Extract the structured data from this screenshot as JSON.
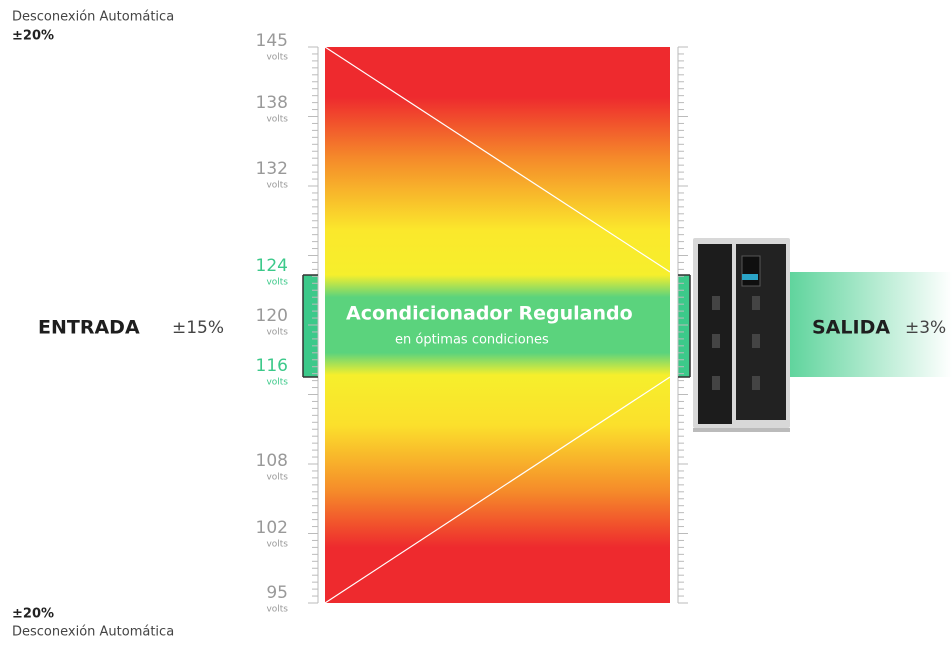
{
  "top_note": {
    "text": "Desconexión Automática",
    "range": "±20%"
  },
  "bottom_note": {
    "range": "±20%",
    "text": "Desconexión Automática"
  },
  "scale": [
    {
      "value": 145,
      "unit": "volts"
    },
    {
      "value": 138,
      "unit": "volts"
    },
    {
      "value": 132,
      "unit": "volts"
    },
    {
      "value": 124,
      "unit": "volts"
    },
    {
      "value": 120,
      "unit": "volts"
    },
    {
      "value": 116,
      "unit": "volts"
    },
    {
      "value": 108,
      "unit": "volts"
    },
    {
      "value": 102,
      "unit": "volts"
    },
    {
      "value": 95,
      "unit": "volts"
    }
  ],
  "center": {
    "title": "Acondicionador Regulando",
    "subtitle": "en óptimas condiciones"
  },
  "input": {
    "label": "ENTRADA",
    "tolerance": "±15%"
  },
  "output": {
    "label": "SALIDA",
    "tolerance": "±3%"
  }
}
